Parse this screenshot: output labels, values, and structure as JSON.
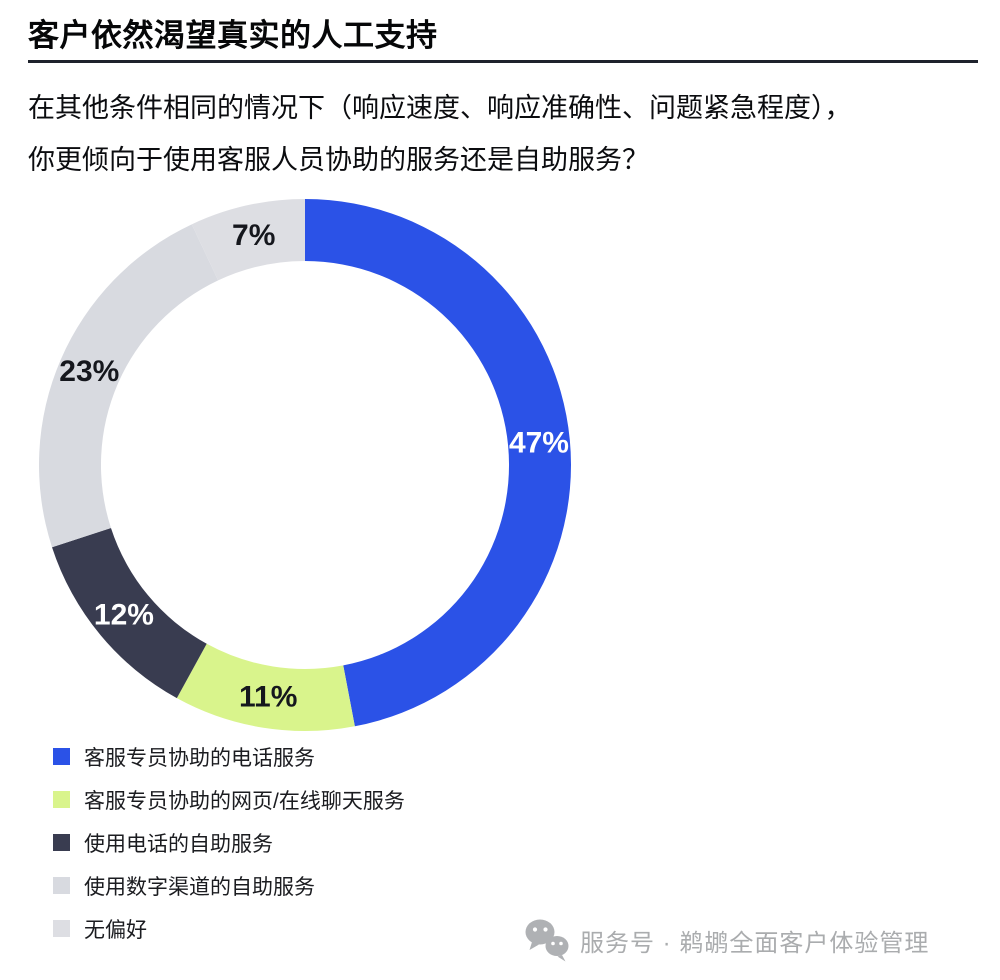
{
  "page": {
    "background": "#ffffff"
  },
  "header": {
    "title": "客户依然渴望真实的人工支持",
    "underline_color": "#1e222c"
  },
  "question": {
    "line1": "在其他条件相同的情况下（响应速度、响应准确性、问题紧急程度），",
    "line2": "你更倾向于使用客服人员协助的服务还是自助服务？"
  },
  "chart_data": {
    "type": "pie",
    "subtype": "donut",
    "categories": [
      "客服专员协助的电话服务",
      "客服专员协助的网页/在线聊天服务",
      "使用电话的自助服务",
      "使用数字渠道的自助服务",
      "无偏好"
    ],
    "values": [
      47,
      11,
      12,
      23,
      7
    ],
    "unit": "%",
    "colors": [
      "#2B52E7",
      "#D9F48C",
      "#393C50",
      "#D8DAE0",
      "#DDDEE3"
    ],
    "label_colors": [
      "#FFFFFF",
      "#15171D",
      "#FFFFFF",
      "#15171D",
      "#15171D"
    ],
    "start_angle_deg": 0,
    "direction": "clockwise",
    "inner_radius_ratio": 0.767,
    "grid": false,
    "legend_position": "bottom-left",
    "data_labels": [
      "47%",
      "11%",
      "12%",
      "23%",
      "7%"
    ]
  },
  "footer": {
    "icon": "wechat-icon",
    "source_label": "服务号 · 鹈鹕全面客户体验管理",
    "text_color": "#aaacae"
  }
}
